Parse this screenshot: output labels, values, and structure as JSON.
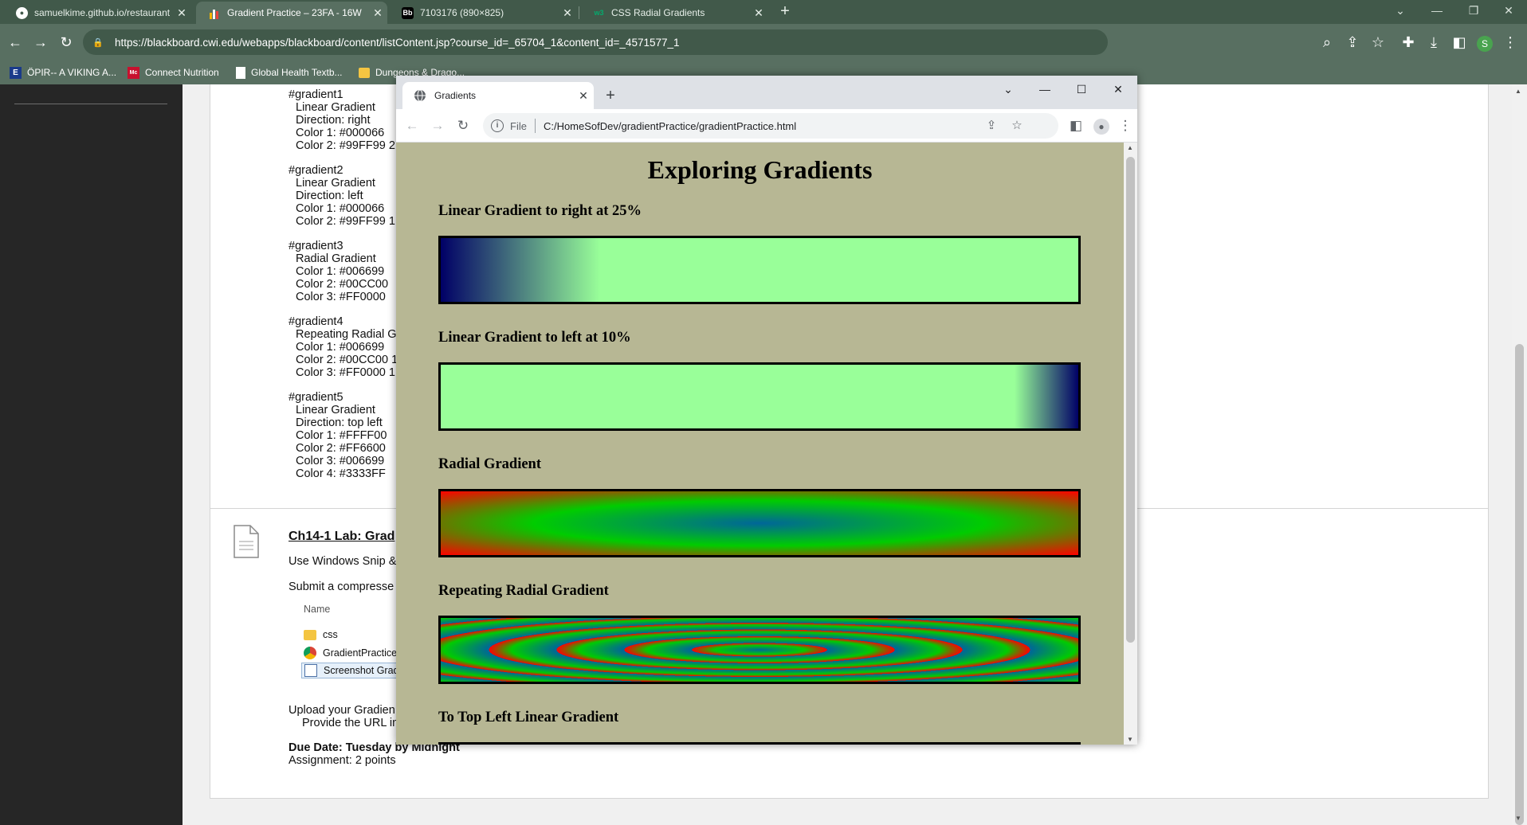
{
  "outer_browser": {
    "tabs": [
      {
        "label": "samuelkime.github.io/restaurant",
        "favicon": "github-icon"
      },
      {
        "label": "Gradient Practice – 23FA - 16W",
        "favicon": "blackboard-chart-icon"
      },
      {
        "label": "7103176 (890×825)",
        "favicon": "bb-icon",
        "favicon_text": "Bb"
      },
      {
        "label": "CSS Radial Gradients",
        "favicon": "w3schools-icon",
        "favicon_text": "w3"
      }
    ],
    "active_tab_index": 1,
    "url": "https://blackboard.cwi.edu/webapps/blackboard/content/listContent.jsp?course_id=_65704_1&content_id=_4571577_1",
    "profile_initial": "S",
    "bookmarks": [
      {
        "label": "ÖPIR-- A VIKING A...",
        "icon_text": "E"
      },
      {
        "label": "Connect Nutrition",
        "icon_text": "Mc"
      },
      {
        "label": "Global Health Textb...",
        "icon_text": ""
      },
      {
        "label": "Dungeons & Drago...",
        "icon_text": ""
      }
    ],
    "accent_color": "#586f61",
    "tabstrip_color": "#41594a"
  },
  "blackboard": {
    "gradient_specs": [
      {
        "id": "#gradient1",
        "lines": [
          "Linear Gradient",
          "Direction: right",
          "Color 1: #000066",
          "Color 2: #99FF99 2"
        ]
      },
      {
        "id": "#gradient2",
        "lines": [
          "Linear Gradient",
          "Direction: left",
          "Color 1: #000066",
          "Color 2: #99FF99 1"
        ]
      },
      {
        "id": "#gradient3",
        "lines": [
          "Radial Gradient",
          "Color 1: #006699",
          "Color 2: #00CC00",
          "Color 3: #FF0000"
        ]
      },
      {
        "id": "#gradient4",
        "lines": [
          "Repeating Radial G",
          "Color 1: #006699",
          "Color 2: #00CC00 1",
          "Color 3: #FF0000 1"
        ]
      },
      {
        "id": "#gradient5",
        "lines": [
          "Linear Gradient",
          "Direction: top left",
          "Color 1: #FFFF00",
          "Color 2: #FF6600",
          "Color 3: #006699",
          "Color 4: #3333FF"
        ]
      }
    ],
    "item_title": "Ch14-1 Lab: Grad",
    "instruction_1": "Use Windows Snip &",
    "instruction_2": "Submit a compresse",
    "file_list_header": "Name",
    "files": [
      {
        "name": "css",
        "icon": "folder-icon"
      },
      {
        "name": "GradientPractice",
        "icon": "chrome-file-icon"
      },
      {
        "name": "Screenshot Grad",
        "icon": "image-file-icon"
      }
    ],
    "upload_text_1": "Upload your Gradien",
    "upload_text_2": "Provide the URL in",
    "due_date": "Due Date: Tuesday by Midnight",
    "assignment_points": "Assignment: 2 points"
  },
  "popup_browser": {
    "tab_title": "Gradients",
    "scheme_label": "File",
    "path": "C:/HomeSofDev/gradientPractice/gradientPractice.html"
  },
  "page": {
    "heading": "Exploring Gradients",
    "background_color": "#b7b794",
    "sections": [
      {
        "title": "Linear Gradient to right at 25%"
      },
      {
        "title": "Linear Gradient to left at 10%"
      },
      {
        "title": "Radial Gradient"
      },
      {
        "title": "Repeating Radial Gradient"
      },
      {
        "title": "To Top Left Linear Gradient"
      }
    ]
  }
}
